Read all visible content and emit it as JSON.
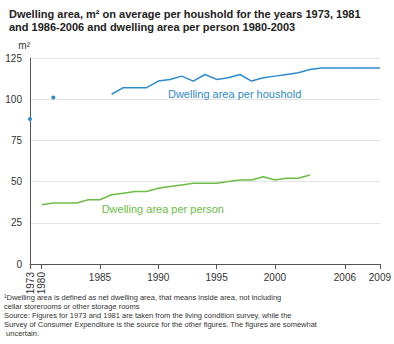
{
  "chart_data": {
    "type": "line",
    "title": "Dwelling area, m² on average per houshold for the years 1973, 1981 and 1986-2006 and dwelling area per person 1980-2003",
    "y_label": "m²",
    "footnote": "¹Dwelling area is defined as net dwelling area, that means inside area, not including cellar storerooms or other storage rooms\nSource: Figures for 1973 and 1981 are taken from the living condition survey, while the Survey of Consumer Expenditure is the source for the other figures. The figures are somewhat uncertain.",
    "categories": [
      "1973",
      "1980",
      null,
      null,
      null,
      null,
      "1985",
      null,
      null,
      null,
      null,
      "1990",
      null,
      null,
      null,
      null,
      "1995",
      null,
      null,
      null,
      null,
      "2000",
      null,
      null,
      null,
      null,
      null,
      "2006",
      null,
      null,
      "2009"
    ],
    "series": [
      {
        "name": "Dwelling area per houshold",
        "color": "#2e8bcb",
        "values": [
          88,
          null,
          101,
          null,
          null,
          null,
          null,
          103,
          107,
          107,
          107,
          111,
          112,
          114,
          111,
          115,
          112,
          113,
          115,
          111,
          113,
          114,
          115,
          116,
          118,
          119,
          119,
          119,
          119,
          119,
          119
        ]
      },
      {
        "name": "Dwelling area per person",
        "color": "#6cbd45",
        "values": [
          null,
          36,
          37,
          37,
          37,
          39,
          39,
          42,
          43,
          44,
          44,
          46,
          47,
          48,
          49,
          49,
          49,
          50,
          51,
          51,
          53,
          51,
          52,
          52,
          54,
          null,
          null,
          null,
          null,
          null,
          null
        ]
      }
    ],
    "ylim": [
      0,
      125
    ],
    "yticks": [
      0,
      25,
      50,
      75,
      100,
      125
    ],
    "grid": true
  }
}
